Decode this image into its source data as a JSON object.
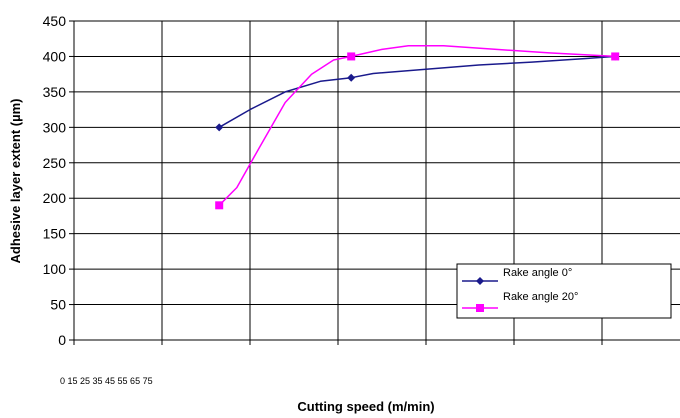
{
  "chart_data": {
    "type": "line",
    "xlabel": "Cutting speed (m/min)",
    "ylabel": "Adhesive layer extent (µm)",
    "x_category_label": "0 15 25 35 45 55 65 75",
    "ylim": [
      0,
      450
    ],
    "y_ticks": [
      0,
      50,
      100,
      150,
      200,
      250,
      300,
      350,
      400,
      450
    ],
    "grid": true,
    "legend_position": "bottom-right",
    "series": [
      {
        "name": "Rake angle 0°",
        "color": "#1a1a8c",
        "marker": "diamond",
        "points": [
          [
            1.65,
            300
          ],
          [
            3.15,
            370
          ],
          [
            6.15,
            400
          ]
        ],
        "curve": [
          [
            1.65,
            300
          ],
          [
            2.0,
            325
          ],
          [
            2.4,
            350
          ],
          [
            2.8,
            365
          ],
          [
            3.15,
            370
          ],
          [
            3.4,
            376
          ],
          [
            4.0,
            382
          ],
          [
            4.6,
            388
          ],
          [
            5.2,
            392
          ],
          [
            5.8,
            397
          ],
          [
            6.15,
            400
          ]
        ]
      },
      {
        "name": "Rake angle 20°",
        "color": "#ff00ff",
        "marker": "square",
        "points": [
          [
            1.65,
            190
          ],
          [
            3.15,
            400
          ],
          [
            6.15,
            400
          ]
        ],
        "curve": [
          [
            1.65,
            190
          ],
          [
            1.85,
            215
          ],
          [
            2.1,
            270
          ],
          [
            2.4,
            335
          ],
          [
            2.7,
            375
          ],
          [
            2.95,
            395
          ],
          [
            3.15,
            400
          ],
          [
            3.5,
            410
          ],
          [
            3.8,
            415
          ],
          [
            4.2,
            415
          ],
          [
            4.8,
            410
          ],
          [
            5.4,
            405
          ],
          [
            6.15,
            400
          ]
        ]
      }
    ]
  }
}
